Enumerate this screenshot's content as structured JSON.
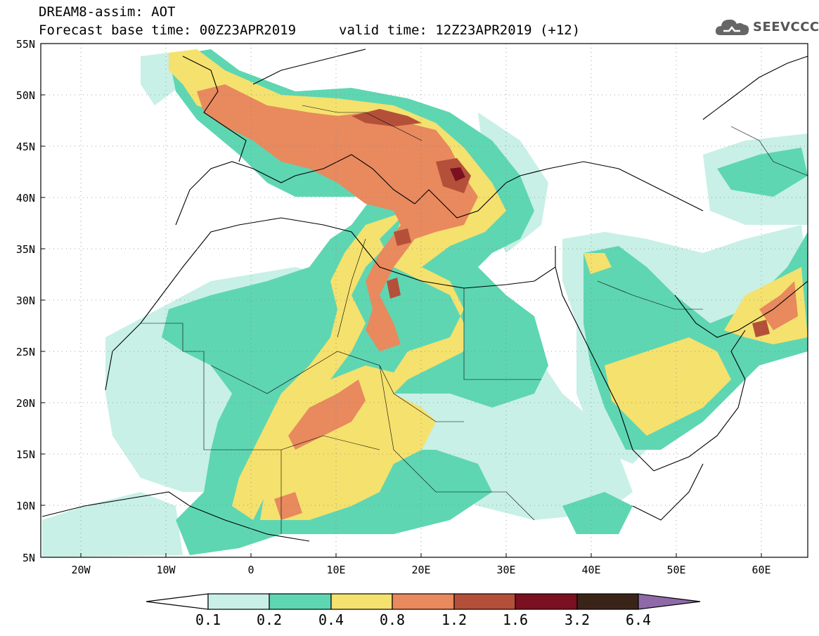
{
  "header": {
    "title_line1": "DREAM8-assim: AOT",
    "title_line2": "Forecast base time: 00Z23APR2019",
    "valid_time": "valid time: 12Z23APR2019 (+12)",
    "logo_text": "SEEVCCC"
  },
  "map": {
    "projection": "lat-lon",
    "lon_range": [
      -25,
      65
    ],
    "lat_range": [
      5,
      55
    ],
    "lat_labels": [
      "55N",
      "50N",
      "45N",
      "40N",
      "35N",
      "30N",
      "25N",
      "20N",
      "15N",
      "10N",
      "5N"
    ],
    "lon_labels": [
      "20W",
      "10W",
      "0",
      "10E",
      "20E",
      "30E",
      "40E",
      "50E",
      "60E"
    ],
    "gridlines": "dotted"
  },
  "colorbar": {
    "labels": [
      "0.1",
      "0.2",
      "0.4",
      "0.8",
      "1.2",
      "1.6",
      "3.2",
      "6.4"
    ],
    "colors": [
      "#c8f0e6",
      "#5ed6b2",
      "#f5e16e",
      "#e8895e",
      "#b4503a",
      "#7a1020",
      "#3a2418"
    ],
    "under_color": "#ffffff",
    "over_color": "#8e6aa8"
  },
  "colors": {
    "very_low": "#c8f0e6",
    "low": "#5ed6b2",
    "mid": "#f5e16e",
    "high": "#e8895e",
    "very_high": "#b4503a",
    "extreme": "#7a1020"
  }
}
